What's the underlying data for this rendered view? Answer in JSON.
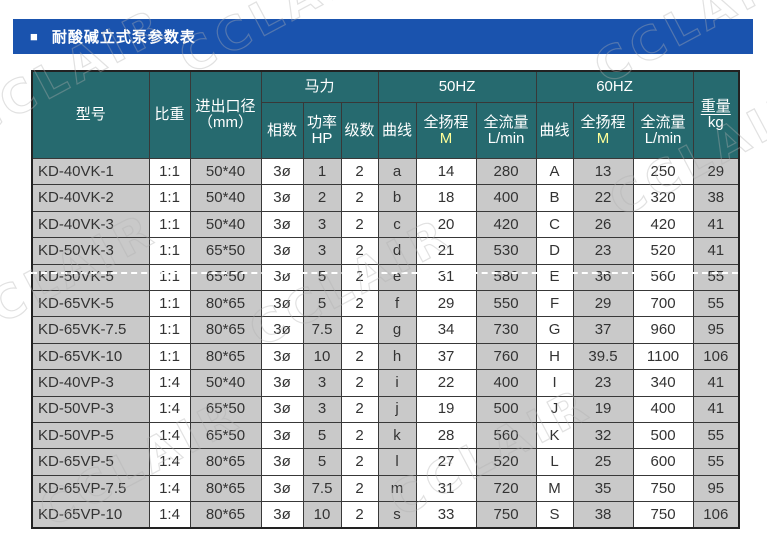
{
  "page": {
    "watermark_text": "CCLAIR"
  },
  "title_bar": {
    "bullet": "■",
    "title": "耐酸碱立式泵参数表",
    "bg_color": "#1a53ae"
  },
  "colors": {
    "banner_blue": "#1a53ae",
    "header_teal": "#266a6f",
    "cell_gray": "#c9c9c9",
    "cell_white": "#ffffff",
    "text_dark": "#333333",
    "header_unit_yellow": "#ffff99"
  },
  "table": {
    "header": {
      "model": "型号",
      "gravity": "比重",
      "diameter_line1": "进出口径",
      "diameter_line2": "（mm）",
      "horsepower": "马力",
      "phases": "相数",
      "power_line1": "功率",
      "power_line2": "HP",
      "stages": "级数",
      "hz50": "50HZ",
      "hz60": "60HZ",
      "curve50": "曲线",
      "head50_line1": "全扬程",
      "head50_line2": "M",
      "flow50_line1": "全流量",
      "flow50_line2": "L/min",
      "curve60": "曲线",
      "head60_line1": "全扬程",
      "head60_line2": "M",
      "flow60_line1": "全流量",
      "flow60_line2": "L/min",
      "weight_line1": "重量",
      "weight_line2": "kg"
    }
  },
  "chart_data": {
    "type": "table",
    "title": "耐酸碱立式泵参数表",
    "column_groups": [
      {
        "label": "马力",
        "columns": [
          "相数",
          "功率 HP",
          "级数"
        ]
      },
      {
        "label": "50HZ",
        "columns": [
          "曲线",
          "全扬程 M",
          "全流量 L/min"
        ]
      },
      {
        "label": "60HZ",
        "columns": [
          "曲线",
          "全扬程 M",
          "全流量 L/min"
        ]
      }
    ],
    "columns": [
      "型号",
      "比重",
      "进出口径（mm）",
      "相数",
      "功率 HP",
      "级数",
      "50HZ 曲线",
      "50HZ 全扬程 M",
      "50HZ 全流量 L/min",
      "60HZ 曲线",
      "60HZ 全扬程 M",
      "60HZ 全流量 L/min",
      "重量 kg"
    ],
    "field_names": [
      "model",
      "gravity",
      "diameter",
      "phases",
      "power-hp",
      "stages",
      "curve-50hz",
      "head-m-50hz",
      "flow-lmin-50hz",
      "curve-60hz",
      "head-m-60hz",
      "flow-lmin-60hz",
      "weight-kg"
    ],
    "rows": [
      [
        "KD-40VK-1",
        "1:1",
        "50*40",
        "3ø",
        "1",
        "2",
        "a",
        "14",
        "280",
        "A",
        "13",
        "250",
        "29"
      ],
      [
        "KD-40VK-2",
        "1:1",
        "50*40",
        "3ø",
        "2",
        "2",
        "b",
        "18",
        "400",
        "B",
        "22",
        "320",
        "38"
      ],
      [
        "KD-40VK-3",
        "1:1",
        "50*40",
        "3ø",
        "3",
        "2",
        "c",
        "20",
        "420",
        "C",
        "26",
        "420",
        "41"
      ],
      [
        "KD-50VK-3",
        "1:1",
        "65*50",
        "3ø",
        "3",
        "2",
        "d",
        "21",
        "530",
        "D",
        "23",
        "520",
        "41"
      ],
      [
        "KD-50VK-5",
        "1:1",
        "65*50",
        "3ø",
        "5",
        "2",
        "e",
        "31",
        "580",
        "E",
        "36",
        "560",
        "55"
      ],
      [
        "KD-65VK-5",
        "1:1",
        "80*65",
        "3ø",
        "5",
        "2",
        "f",
        "29",
        "550",
        "F",
        "29",
        "700",
        "55"
      ],
      [
        "KD-65VK-7.5",
        "1:1",
        "80*65",
        "3ø",
        "7.5",
        "2",
        "g",
        "34",
        "730",
        "G",
        "37",
        "960",
        "95"
      ],
      [
        "KD-65VK-10",
        "1:1",
        "80*65",
        "3ø",
        "10",
        "2",
        "h",
        "37",
        "760",
        "H",
        "39.5",
        "1100",
        "106"
      ],
      [
        "KD-40VP-3",
        "1:4",
        "50*40",
        "3ø",
        "3",
        "2",
        "i",
        "22",
        "400",
        "I",
        "23",
        "340",
        "41"
      ],
      [
        "KD-50VP-3",
        "1:4",
        "65*50",
        "3ø",
        "3",
        "2",
        "j",
        "19",
        "500",
        "J",
        "19",
        "400",
        "41"
      ],
      [
        "KD-50VP-5",
        "1:4",
        "65*50",
        "3ø",
        "5",
        "2",
        "k",
        "28",
        "560",
        "K",
        "32",
        "500",
        "55"
      ],
      [
        "KD-65VP-5",
        "1:4",
        "80*65",
        "3ø",
        "5",
        "2",
        "l",
        "27",
        "520",
        "L",
        "25",
        "600",
        "55"
      ],
      [
        "KD-65VP-7.5",
        "1:4",
        "80*65",
        "3ø",
        "7.5",
        "2",
        "m",
        "31",
        "720",
        "M",
        "35",
        "750",
        "95"
      ],
      [
        "KD-65VP-10",
        "1:4",
        "80*65",
        "3ø",
        "10",
        "2",
        "s",
        "33",
        "750",
        "S",
        "38",
        "750",
        "106"
      ]
    ]
  }
}
